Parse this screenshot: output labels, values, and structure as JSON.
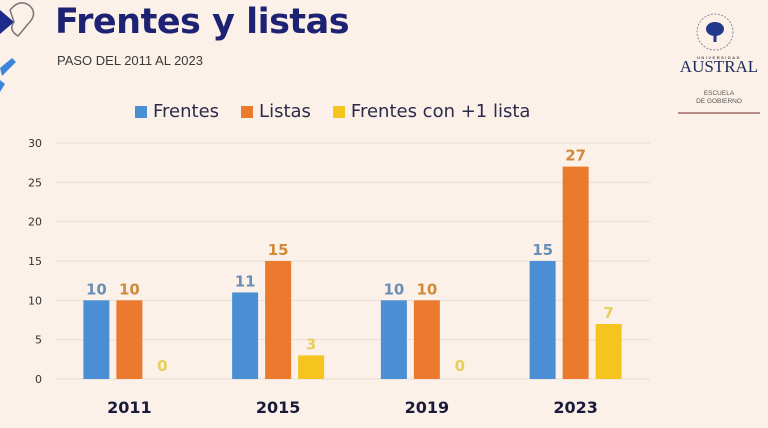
{
  "header": {
    "title": "Frentes y listas",
    "subtitle": "PASO DEL 2011 AL 2023"
  },
  "logo": {
    "university_small": "UNIVERSIDAD",
    "university_name": "AUSTRAL",
    "school_line1": "ESCUELA",
    "school_line2": "DE GOBIERNO"
  },
  "colors": {
    "title": "#1e2272",
    "frentes": "#4a8fd4",
    "listas": "#ec7a2e",
    "frentes_mas_lista": "#f6c41f",
    "frentes_label": "#6a8fb5",
    "listas_label": "#d08a3a",
    "frentes_mas_lista_label": "#e6cf5a"
  },
  "chart_data": {
    "type": "bar",
    "title": "Frentes y listas",
    "subtitle": "PASO DEL 2011 AL 2023",
    "categories": [
      "2011",
      "2015",
      "2019",
      "2023"
    ],
    "series": [
      {
        "name": "Frentes",
        "values": [
          10,
          11,
          10,
          15
        ]
      },
      {
        "name": "Listas",
        "values": [
          10,
          15,
          10,
          27
        ]
      },
      {
        "name": "Frentes con +1 lista",
        "values": [
          0,
          3,
          0,
          7
        ]
      }
    ],
    "xlabel": "",
    "ylabel": "",
    "ylim": [
      0,
      30
    ],
    "yticks": [
      0,
      5,
      10,
      15,
      20,
      25,
      30
    ],
    "grid": true,
    "legend": "top-center",
    "data_labels": true
  }
}
